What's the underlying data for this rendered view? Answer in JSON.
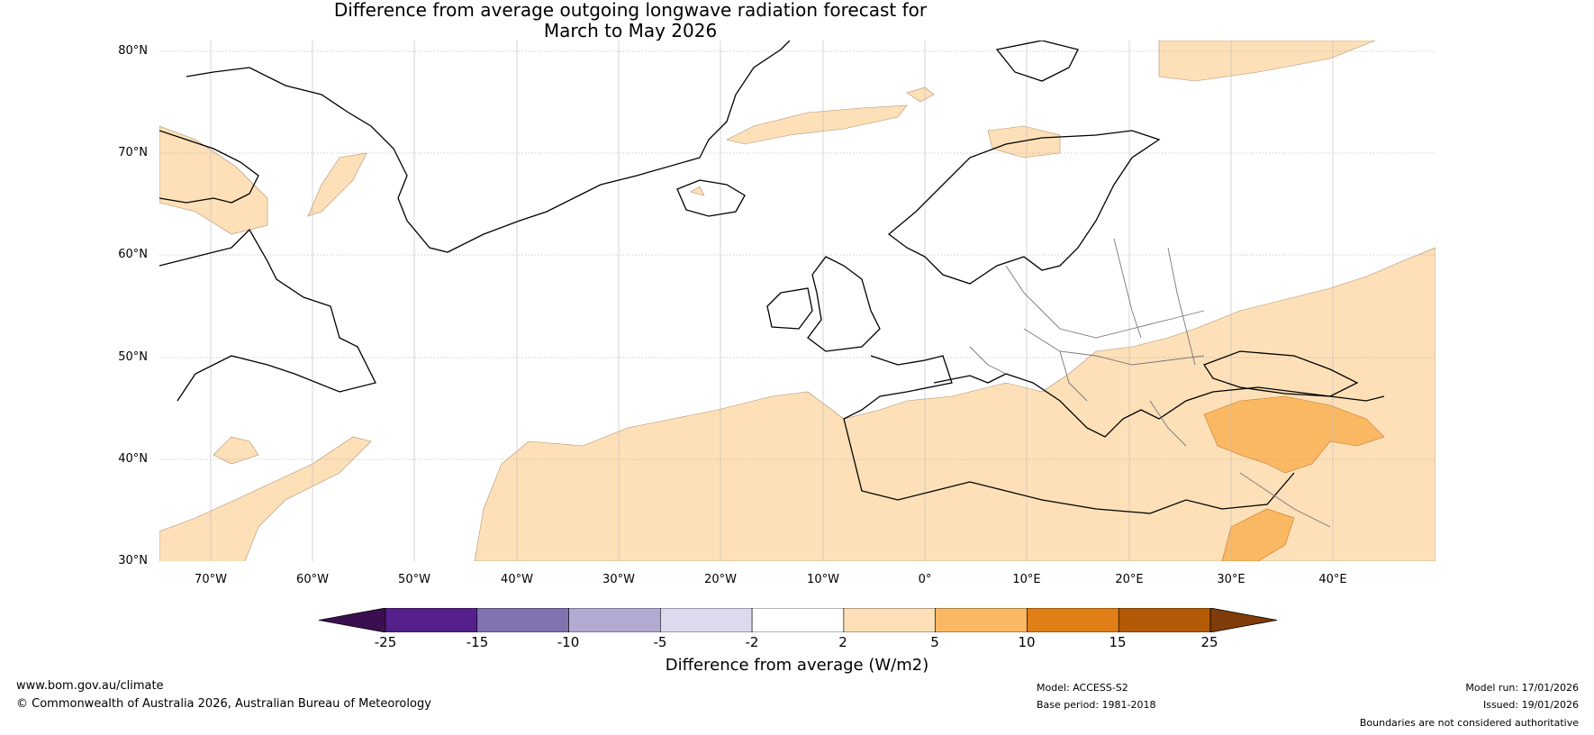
{
  "title": {
    "line1": "Difference from average outgoing longwave radiation forecast for",
    "line2": "March to May 2026"
  },
  "map": {
    "lat_labels": [
      "80°N",
      "70°N",
      "60°N",
      "50°N",
      "40°N",
      "30°N"
    ],
    "lon_labels": [
      "70°W",
      "60°W",
      "50°W",
      "40°W",
      "30°W",
      "20°W",
      "10°W",
      "0°",
      "10°E",
      "20°E",
      "30°E",
      "40°E"
    ]
  },
  "colorbar": {
    "ticks": [
      "-25",
      "-15",
      "-10",
      "-5",
      "-2",
      "2",
      "5",
      "10",
      "15",
      "25"
    ],
    "colors": [
      "#3b0f4f",
      "#55208a",
      "#8073b0",
      "#b2aad3",
      "#dcdaec",
      "#ffffff",
      "#fde0b8",
      "#fbb863",
      "#e07f15",
      "#b35a07",
      "#7f3b08"
    ],
    "label": "Difference from average (W/m2)"
  },
  "footer": {
    "website": "www.bom.gov.au/climate",
    "copyright": "© Commonwealth of Australia 2026, Australian Bureau of Meteorology",
    "model": "Model: ACCESS-S2",
    "base_period": "Base period: 1981-2018",
    "model_run": "Model run: 17/01/2026",
    "issued": "Issued: 19/01/2026",
    "disclaimer": "Boundaries are not considered authoritative"
  }
}
